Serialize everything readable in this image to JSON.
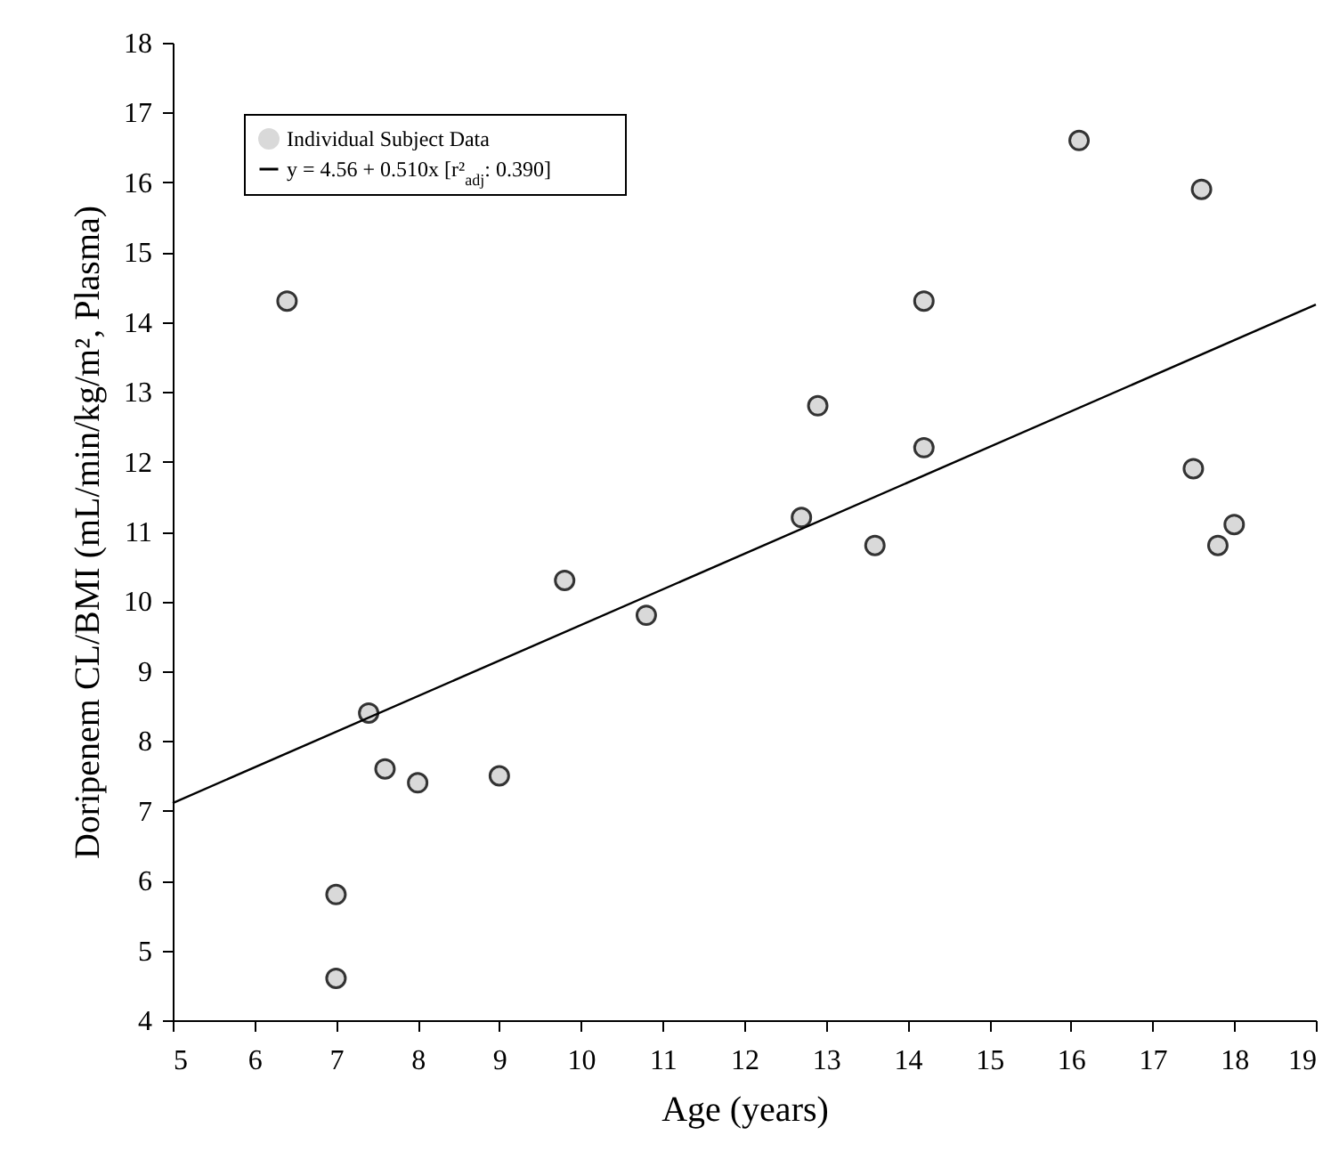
{
  "chart_data": {
    "type": "scatter",
    "xlabel": "Age (years)",
    "ylabel": "Doripenem CL/BMI (mL/min/kg/m², Plasma)",
    "xlim": [
      5,
      19
    ],
    "xticks": [
      5,
      6,
      7,
      8,
      9,
      10,
      11,
      12,
      13,
      14,
      15,
      16,
      17,
      18,
      19
    ],
    "ylim": [
      4,
      18
    ],
    "yticks": [
      4,
      5,
      6,
      7,
      8,
      9,
      10,
      11,
      12,
      13,
      14,
      15,
      16,
      17,
      18
    ],
    "grid": false,
    "legend": "top left",
    "series": [
      {
        "name": "Individual Subject Data",
        "marker": "circle",
        "color": "#d9d9d9",
        "x": [
          6.4,
          7.0,
          7.0,
          7.4,
          7.6,
          8.0,
          9.0,
          9.8,
          10.8,
          12.7,
          12.9,
          13.6,
          14.2,
          14.2,
          16.1,
          17.5,
          17.6,
          17.8,
          18.0
        ],
        "values": [
          14.3,
          4.6,
          5.8,
          8.4,
          7.6,
          7.4,
          7.5,
          10.3,
          9.8,
          11.2,
          12.8,
          10.8,
          14.3,
          12.2,
          16.6,
          11.9,
          15.9,
          10.8,
          11.1
        ]
      },
      {
        "name": "y = 4.56 + 0.510x [r²$_{adj}$: 0.390]",
        "type": "line",
        "marker": "none",
        "line_style": "solid",
        "color": "#000000",
        "x": [
          5,
          19
        ],
        "values": [
          7.11,
          14.25
        ]
      }
    ]
  }
}
